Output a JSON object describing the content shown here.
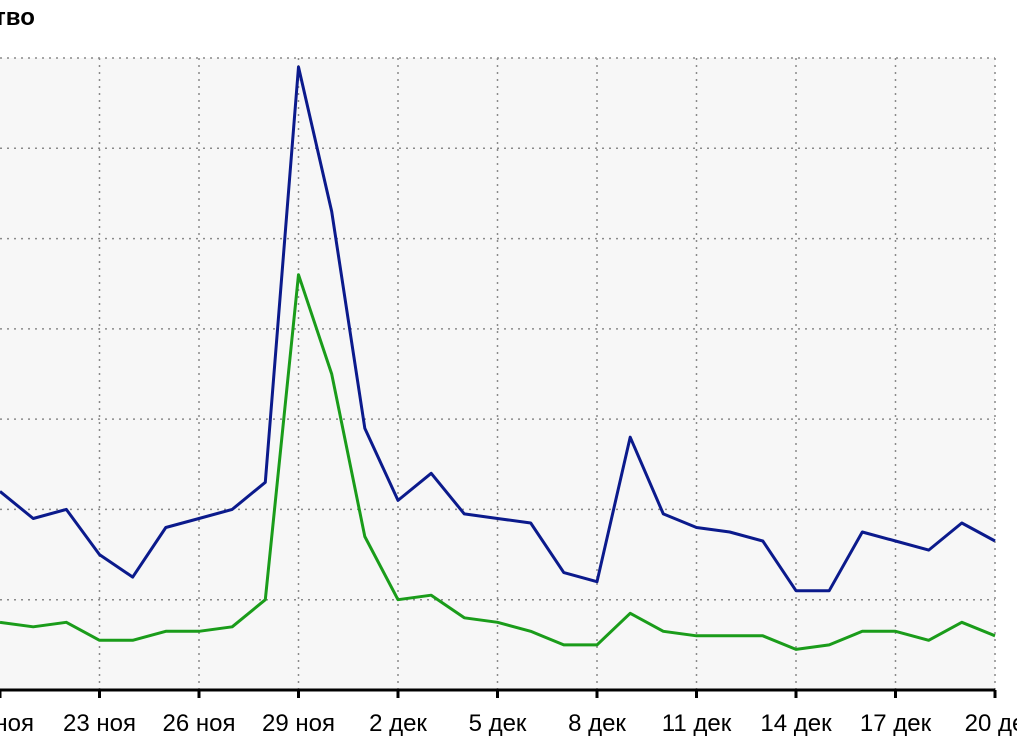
{
  "chart_data": {
    "type": "line",
    "title": "тво",
    "xlabel": "",
    "ylabel": "",
    "x_tick_labels": [
      "ноя",
      "23 ноя",
      "26 ноя",
      "29 ноя",
      "2 дек",
      "5 дек",
      "8 дек",
      "11 дек",
      "14 дек",
      "17 дек",
      "20 де"
    ],
    "grid": true,
    "xlim": [
      0,
      30
    ],
    "ylim": [
      0,
      7
    ],
    "series": [
      {
        "color": "#0b1a8c",
        "values": [
          2.2,
          1.9,
          2.0,
          1.5,
          1.25,
          1.8,
          1.9,
          2.0,
          2.3,
          6.9,
          5.3,
          2.9,
          2.1,
          2.4,
          1.95,
          1.9,
          1.85,
          1.3,
          1.2,
          2.8,
          1.95,
          1.8,
          1.75,
          1.65,
          1.1,
          1.1,
          1.75,
          1.65,
          1.55,
          1.85,
          1.65
        ]
      },
      {
        "color": "#1a9c1a",
        "values": [
          0.75,
          0.7,
          0.75,
          0.55,
          0.55,
          0.65,
          0.65,
          0.7,
          1.0,
          4.6,
          3.5,
          1.7,
          1.0,
          1.05,
          0.8,
          0.75,
          0.65,
          0.5,
          0.5,
          0.85,
          0.65,
          0.6,
          0.6,
          0.6,
          0.45,
          0.5,
          0.65,
          0.65,
          0.55,
          0.75,
          0.6
        ]
      }
    ]
  }
}
